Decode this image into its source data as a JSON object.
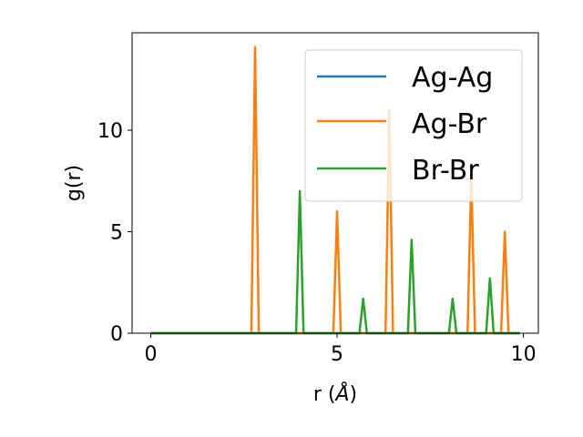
{
  "chart_data": {
    "type": "line",
    "xlabel": "r (",
    "xlabel_unit": "Å",
    "xlabel_close": ")",
    "ylabel": "g(r)",
    "xlim": [
      -0.5,
      10.4
    ],
    "ylim": [
      0,
      14.8
    ],
    "xticks": [
      0,
      5,
      10
    ],
    "xtick_labels": [
      "0",
      "5",
      "10"
    ],
    "yticks": [
      0,
      5,
      10
    ],
    "ytick_labels": [
      "0",
      "5",
      "10"
    ],
    "grid": false,
    "legend_position": "upper-right",
    "series": [
      {
        "name": "Ag-Ag",
        "color": "#1f77b4",
        "x": [
          0,
          9.9
        ],
        "y": [
          0,
          0
        ]
      },
      {
        "name": "Ag-Br",
        "color": "#ff7f0e",
        "x": [
          0,
          2.7,
          2.8,
          2.9,
          4.9,
          5.0,
          5.1,
          6.3,
          6.4,
          6.5,
          8.5,
          8.6,
          8.7,
          9.4,
          9.5,
          9.6,
          9.9
        ],
        "y": [
          0,
          0,
          14.1,
          0,
          0,
          6.0,
          0,
          0,
          11.0,
          0,
          0,
          7.7,
          0,
          0,
          5.0,
          0,
          0
        ]
      },
      {
        "name": "Br-Br",
        "color": "#2ca02c",
        "x": [
          0,
          3.9,
          4.0,
          4.1,
          5.6,
          5.7,
          5.8,
          6.9,
          7.0,
          7.1,
          8.0,
          8.1,
          8.2,
          9.0,
          9.1,
          9.2,
          9.9
        ],
        "y": [
          0,
          0,
          7.0,
          0,
          0,
          1.7,
          0,
          0,
          4.6,
          0,
          0,
          1.7,
          0,
          0,
          2.7,
          0,
          0
        ]
      }
    ]
  }
}
